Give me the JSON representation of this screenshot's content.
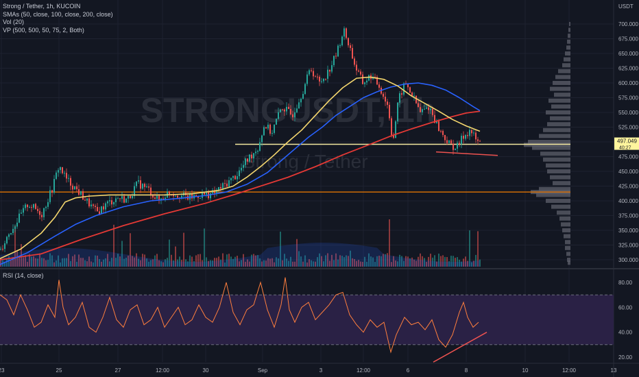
{
  "legend": {
    "symbol": "Strong / Tether, 1h, KUCOIN",
    "sma": "SMAs (50, close, 100, close, 200, close)",
    "vol": "Vol (20)",
    "vp": "VP (500, 500, 50, 75, 2, Both)",
    "rsi": "RSI (14, close)"
  },
  "watermark": {
    "ticker": "STRONGUSDT, 1h",
    "name": "Strong / Tether"
  },
  "price_axis": {
    "currency": "USDT",
    "ticks": [
      "700.000",
      "675.000",
      "650.000",
      "625.000",
      "600.000",
      "575.000",
      "550.000",
      "525.000",
      "500.000",
      "475.000",
      "450.000",
      "425.000",
      "400.000",
      "375.000",
      "350.000",
      "325.000",
      "300.000"
    ],
    "current_price": "497.049",
    "countdown": "40:27"
  },
  "rsi_axis": {
    "ticks": [
      "80.00",
      "60.00",
      "40.00",
      "20.00"
    ]
  },
  "time_axis": [
    "23",
    "25",
    "27",
    "12:00",
    "30",
    "Sep",
    "3",
    "12:00",
    "6",
    "8",
    "10",
    "12:00",
    "13"
  ],
  "colors": {
    "up": "#26a69a",
    "down": "#ef5350",
    "sma50": "#f5d76e",
    "sma100": "#2962ff",
    "sma200": "#e53935",
    "support": "#f5e9a0",
    "orange_level": "#f57c00",
    "rsi_line": "#ff7f3e",
    "rsi_band": "#2a2145",
    "price_label": "#fff59d"
  },
  "chart_data": {
    "type": "candlestick",
    "title": "Strong / Tether, 1h, KUCOIN",
    "ylim": [
      290,
      712
    ],
    "levels": {
      "support": 496,
      "orange": 415
    },
    "x": [
      "23",
      "25",
      "27",
      "12:00",
      "30",
      "Sep",
      "3",
      "12:00",
      "6",
      "8"
    ],
    "close_path": [
      [
        0,
        318
      ],
      [
        12,
        345
      ],
      [
        25,
        368
      ],
      [
        40,
        395
      ],
      [
        60,
        378
      ],
      [
        75,
        420
      ],
      [
        85,
        460
      ],
      [
        95,
        438
      ],
      [
        110,
        420
      ],
      [
        125,
        400
      ],
      [
        140,
        380
      ],
      [
        155,
        395
      ],
      [
        170,
        405
      ],
      [
        185,
        402
      ],
      [
        200,
        430
      ],
      [
        215,
        420
      ],
      [
        230,
        400
      ],
      [
        245,
        415
      ],
      [
        260,
        410
      ],
      [
        275,
        405
      ],
      [
        290,
        410
      ],
      [
        310,
        412
      ],
      [
        330,
        430
      ],
      [
        345,
        445
      ],
      [
        360,
        470
      ],
      [
        375,
        490
      ],
      [
        385,
        530
      ],
      [
        395,
        515
      ],
      [
        410,
        560
      ],
      [
        425,
        545
      ],
      [
        440,
        585
      ],
      [
        452,
        625
      ],
      [
        465,
        600
      ],
      [
        478,
        620
      ],
      [
        490,
        650
      ],
      [
        500,
        690
      ],
      [
        508,
        665
      ],
      [
        518,
        625
      ],
      [
        528,
        600
      ],
      [
        540,
        612
      ],
      [
        552,
        595
      ],
      [
        565,
        560
      ],
      [
        572,
        500
      ],
      [
        580,
        570
      ],
      [
        590,
        600
      ],
      [
        600,
        580
      ],
      [
        612,
        550
      ],
      [
        625,
        560
      ],
      [
        640,
        520
      ],
      [
        655,
        495
      ],
      [
        665,
        490
      ],
      [
        675,
        510
      ],
      [
        685,
        520
      ],
      [
        695,
        500
      ],
      [
        700,
        497
      ]
    ],
    "sma50_path": [
      [
        0,
        302
      ],
      [
        30,
        318
      ],
      [
        60,
        345
      ],
      [
        80,
        372
      ],
      [
        95,
        398
      ],
      [
        110,
        405
      ],
      [
        130,
        408
      ],
      [
        160,
        410
      ],
      [
        200,
        410
      ],
      [
        240,
        410
      ],
      [
        280,
        412
      ],
      [
        320,
        418
      ],
      [
        340,
        425
      ],
      [
        360,
        440
      ],
      [
        380,
        458
      ],
      [
        400,
        478
      ],
      [
        420,
        500
      ],
      [
        440,
        520
      ],
      [
        460,
        545
      ],
      [
        480,
        570
      ],
      [
        500,
        592
      ],
      [
        520,
        608
      ],
      [
        540,
        610
      ],
      [
        560,
        606
      ],
      [
        580,
        595
      ],
      [
        600,
        578
      ],
      [
        620,
        565
      ],
      [
        640,
        552
      ],
      [
        660,
        538
      ],
      [
        680,
        527
      ],
      [
        700,
        518
      ]
    ],
    "sma100_path": [
      [
        0,
        292
      ],
      [
        40,
        312
      ],
      [
        80,
        340
      ],
      [
        110,
        360
      ],
      [
        140,
        375
      ],
      [
        180,
        390
      ],
      [
        220,
        400
      ],
      [
        260,
        404
      ],
      [
        300,
        409
      ],
      [
        330,
        415
      ],
      [
        360,
        428
      ],
      [
        390,
        448
      ],
      [
        410,
        468
      ],
      [
        430,
        488
      ],
      [
        450,
        508
      ],
      [
        470,
        525
      ],
      [
        490,
        545
      ],
      [
        510,
        560
      ],
      [
        530,
        575
      ],
      [
        550,
        585
      ],
      [
        570,
        593
      ],
      [
        590,
        598
      ],
      [
        610,
        600
      ],
      [
        630,
        596
      ],
      [
        650,
        588
      ],
      [
        670,
        575
      ],
      [
        690,
        560
      ],
      [
        700,
        553
      ]
    ],
    "sma200_path": [
      [
        0,
        300
      ],
      [
        60,
        310
      ],
      [
        120,
        335
      ],
      [
        180,
        358
      ],
      [
        240,
        378
      ],
      [
        300,
        396
      ],
      [
        340,
        410
      ],
      [
        380,
        425
      ],
      [
        420,
        440
      ],
      [
        460,
        458
      ],
      [
        500,
        478
      ],
      [
        540,
        496
      ],
      [
        570,
        510
      ],
      [
        600,
        522
      ],
      [
        630,
        533
      ],
      [
        660,
        543
      ],
      [
        680,
        549
      ],
      [
        700,
        552
      ]
    ],
    "trendlines": {
      "price_low": [
        [
          636,
          483
        ],
        [
          726,
          477
        ]
      ],
      "rsi_high": [
        [
          632,
          16
        ],
        [
          710,
          40
        ]
      ]
    },
    "rsi": {
      "ylim": [
        18,
        86
      ],
      "band": [
        30,
        70
      ],
      "path": [
        [
          0,
          70
        ],
        [
          10,
          66
        ],
        [
          20,
          54
        ],
        [
          30,
          70
        ],
        [
          40,
          58
        ],
        [
          50,
          44
        ],
        [
          60,
          48
        ],
        [
          70,
          62
        ],
        [
          80,
          52
        ],
        [
          86,
          82
        ],
        [
          92,
          60
        ],
        [
          100,
          46
        ],
        [
          110,
          52
        ],
        [
          120,
          64
        ],
        [
          130,
          44
        ],
        [
          140,
          40
        ],
        [
          150,
          52
        ],
        [
          160,
          68
        ],
        [
          170,
          50
        ],
        [
          180,
          44
        ],
        [
          190,
          58
        ],
        [
          200,
          62
        ],
        [
          210,
          46
        ],
        [
          220,
          50
        ],
        [
          230,
          60
        ],
        [
          240,
          44
        ],
        [
          250,
          52
        ],
        [
          260,
          60
        ],
        [
          270,
          46
        ],
        [
          280,
          50
        ],
        [
          290,
          62
        ],
        [
          300,
          52
        ],
        [
          310,
          48
        ],
        [
          320,
          60
        ],
        [
          330,
          80
        ],
        [
          340,
          56
        ],
        [
          350,
          46
        ],
        [
          360,
          58
        ],
        [
          370,
          62
        ],
        [
          380,
          80
        ],
        [
          390,
          58
        ],
        [
          400,
          44
        ],
        [
          410,
          62
        ],
        [
          416,
          84
        ],
        [
          422,
          58
        ],
        [
          430,
          48
        ],
        [
          440,
          60
        ],
        [
          450,
          64
        ],
        [
          460,
          50
        ],
        [
          470,
          56
        ],
        [
          480,
          62
        ],
        [
          490,
          70
        ],
        [
          500,
          72
        ],
        [
          510,
          54
        ],
        [
          520,
          46
        ],
        [
          530,
          40
        ],
        [
          540,
          50
        ],
        [
          550,
          44
        ],
        [
          560,
          48
        ],
        [
          570,
          24
        ],
        [
          578,
          38
        ],
        [
          590,
          52
        ],
        [
          600,
          46
        ],
        [
          610,
          48
        ],
        [
          620,
          42
        ],
        [
          630,
          50
        ],
        [
          640,
          34
        ],
        [
          650,
          28
        ],
        [
          660,
          38
        ],
        [
          670,
          56
        ],
        [
          676,
          64
        ],
        [
          682,
          52
        ],
        [
          690,
          44
        ],
        [
          698,
          48
        ]
      ]
    },
    "volume_profile": [
      [
        700,
        2
      ],
      [
        690,
        3
      ],
      [
        680,
        4
      ],
      [
        670,
        5
      ],
      [
        660,
        6
      ],
      [
        650,
        8
      ],
      [
        640,
        10
      ],
      [
        630,
        12
      ],
      [
        620,
        18
      ],
      [
        610,
        22
      ],
      [
        600,
        26
      ],
      [
        590,
        30
      ],
      [
        580,
        24
      ],
      [
        570,
        32
      ],
      [
        560,
        28
      ],
      [
        550,
        36
      ],
      [
        540,
        30
      ],
      [
        530,
        34
      ],
      [
        520,
        40
      ],
      [
        510,
        46
      ],
      [
        500,
        62
      ],
      [
        495,
        68
      ],
      [
        490,
        56
      ],
      [
        480,
        44
      ],
      [
        470,
        40
      ],
      [
        460,
        36
      ],
      [
        450,
        34
      ],
      [
        440,
        30
      ],
      [
        430,
        26
      ],
      [
        420,
        46
      ],
      [
        415,
        58
      ],
      [
        410,
        50
      ],
      [
        400,
        36
      ],
      [
        390,
        28
      ],
      [
        380,
        20
      ],
      [
        370,
        16
      ],
      [
        360,
        14
      ],
      [
        350,
        12
      ],
      [
        340,
        10
      ],
      [
        330,
        8
      ],
      [
        320,
        8
      ],
      [
        310,
        6
      ],
      [
        300,
        5
      ],
      [
        295,
        4
      ]
    ]
  }
}
